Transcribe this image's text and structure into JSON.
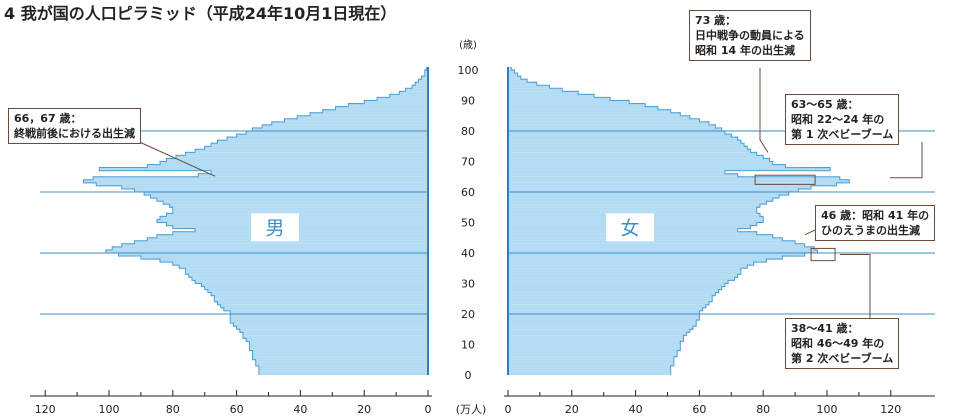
{
  "title": "4 我が国の人口ピラミッド（平成24年10月1日現在）",
  "chart_data": {
    "type": "area",
    "age_axis": {
      "unit": "(歳)",
      "ticks": [
        0,
        10,
        20,
        30,
        40,
        50,
        60,
        70,
        80,
        90,
        100
      ]
    },
    "population_axis": {
      "unit": "(万人)",
      "range": [
        0,
        120
      ],
      "ticks": [
        0,
        20,
        40,
        60,
        80,
        100,
        120
      ]
    },
    "series": [
      {
        "name": "男",
        "side": "left",
        "color": "#b3dbf3",
        "values": [
          53,
          53,
          53,
          54,
          54,
          55,
          55,
          55,
          56,
          56,
          56,
          57,
          58,
          58,
          59,
          60,
          61,
          62,
          62,
          62,
          62,
          64,
          65,
          66,
          67,
          67,
          68,
          69,
          70,
          71,
          73,
          74,
          75,
          76,
          76,
          78,
          80,
          84,
          90,
          97,
          101,
          99,
          96,
          92,
          88,
          85,
          80,
          73,
          80,
          82,
          85,
          84,
          82,
          80,
          80,
          81,
          83,
          85,
          87,
          89,
          92,
          96,
          104,
          108,
          105,
          72,
          68,
          103,
          88,
          84,
          82,
          79,
          76,
          73,
          70,
          68,
          66,
          63,
          60,
          57,
          55,
          52,
          49,
          45,
          41,
          37,
          33,
          29,
          25,
          20,
          16,
          12,
          9,
          7,
          5,
          4,
          3,
          2,
          1,
          1,
          0.5
        ]
      },
      {
        "name": "女",
        "side": "right",
        "color": "#b3dbf3",
        "values": [
          51,
          51,
          51,
          52,
          52,
          52,
          53,
          53,
          54,
          54,
          54,
          55,
          55,
          56,
          57,
          58,
          59,
          59,
          60,
          60,
          60,
          61,
          62,
          63,
          64,
          64,
          65,
          66,
          67,
          68,
          69,
          71,
          72,
          73,
          73,
          75,
          77,
          81,
          86,
          93,
          97,
          96,
          93,
          90,
          86,
          83,
          78,
          72,
          76,
          78,
          80,
          80,
          79,
          78,
          78,
          79,
          81,
          83,
          85,
          88,
          91,
          95,
          103,
          107,
          104,
          72,
          68,
          101,
          87,
          83,
          82,
          80,
          78,
          76,
          75,
          74,
          73,
          72,
          70,
          68,
          67,
          65,
          63,
          60,
          57,
          54,
          51,
          47,
          43,
          38,
          32,
          27,
          22,
          17,
          13,
          9,
          6,
          4,
          3,
          2,
          1
        ]
      }
    ],
    "annotations": [
      {
        "side": "left",
        "age": 66.5,
        "lines": [
          "66，67 歳：",
          "終戦前後における出生減"
        ]
      },
      {
        "side": "right",
        "age": 73,
        "lines": [
          "73 歳：",
          "日中戦争の動員による",
          "昭和 14 年の出生減"
        ]
      },
      {
        "side": "right",
        "age": 64,
        "lines": [
          "63〜65 歳：",
          "昭和 22〜24 年の",
          "第 1 次ベビーブーム"
        ]
      },
      {
        "side": "right",
        "age": 46,
        "lines": [
          "46 歳：昭和 41 年の",
          "ひのえうまの出生減"
        ]
      },
      {
        "side": "right",
        "age": 39.5,
        "lines": [
          "38〜41 歳：",
          "昭和 46〜49 年の",
          "第 2 次ベビーブーム"
        ]
      }
    ]
  }
}
